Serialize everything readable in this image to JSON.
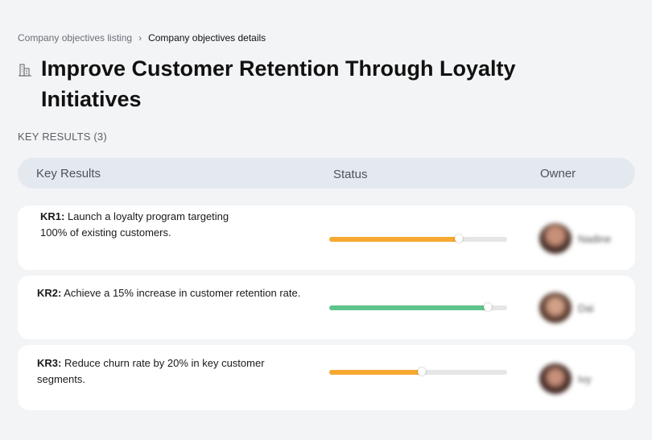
{
  "breadcrumb": {
    "parent": "Company objectives listing",
    "separator": "›",
    "current": "Company objectives details"
  },
  "objective": {
    "icon": "building-icon",
    "title": "Improve Customer Retention Through Loyalty Initiatives"
  },
  "key_results_section": {
    "label": "KEY RESULTS (3)"
  },
  "table": {
    "columns": {
      "key_results": "Key Results",
      "status": "Status",
      "owner": "Owner"
    },
    "rows": [
      {
        "code": "KR1:",
        "text": " Launch a loyalty program targeting 100% of existing customers.",
        "progress": 0.73,
        "bar_color": "#f6a831",
        "owner": "Nadine"
      },
      {
        "code": "KR2:",
        "text": " Achieve a 15% increase in customer retention rate.",
        "progress": 0.89,
        "bar_color": "#5ec48b",
        "owner": "Dai"
      },
      {
        "code": "KR3:",
        "text": " Reduce churn rate by 20% in key customer segments.",
        "progress": 0.52,
        "bar_color": "#f6a831",
        "owner": "Ivy"
      }
    ]
  }
}
